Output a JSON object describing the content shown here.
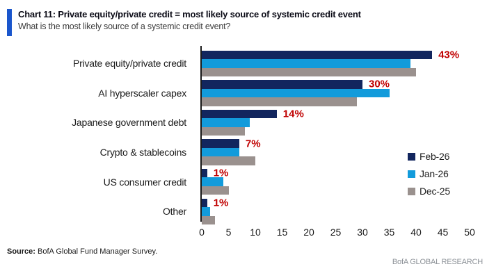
{
  "header": {
    "title": "Chart 11: Private equity/private credit = most likely source of systemic credit event",
    "subtitle": "What is the most likely source of a systemic credit event?",
    "accent_color": "#1a56cc"
  },
  "chart_data": {
    "type": "bar",
    "orientation": "horizontal",
    "title": "Chart 11: Private equity/private credit = most likely source of systemic credit event",
    "subtitle": "What is the most likely source of a systemic credit event?",
    "categories": [
      "Private equity/private credit",
      "AI hyperscaler capex",
      "Japanese government debt",
      "Crypto & stablecoins",
      "US consumer credit",
      "Other"
    ],
    "series": [
      {
        "name": "Feb-26",
        "color": "#12265e",
        "values": [
          43,
          30,
          14,
          7,
          1,
          1
        ]
      },
      {
        "name": "Jan-26",
        "color": "#129bdb",
        "values": [
          39,
          35,
          9,
          7,
          4,
          1.5
        ]
      },
      {
        "name": "Dec-25",
        "color": "#9a918e",
        "values": [
          40,
          29,
          8,
          10,
          5,
          2.5
        ]
      }
    ],
    "data_labels": {
      "on_series": "Feb-26",
      "values": [
        "43%",
        "30%",
        "14%",
        "7%",
        "1%",
        "1%"
      ],
      "color": "#c00000"
    },
    "xlabel": "",
    "ylabel": "",
    "xlim": [
      0,
      50
    ],
    "x_ticks": [
      0,
      5,
      10,
      15,
      20,
      25,
      30,
      35,
      40,
      45,
      50
    ],
    "grid": false,
    "legend_position": "right-middle"
  },
  "legend": {
    "items": [
      {
        "label": "Feb-26",
        "color": "#12265e"
      },
      {
        "label": "Jan-26",
        "color": "#129bdb"
      },
      {
        "label": "Dec-25",
        "color": "#9a918e"
      }
    ]
  },
  "footer": {
    "source_label": "Source:",
    "source_text": " BofA Global Fund Manager Survey.",
    "branding": "BofA GLOBAL RESEARCH"
  }
}
